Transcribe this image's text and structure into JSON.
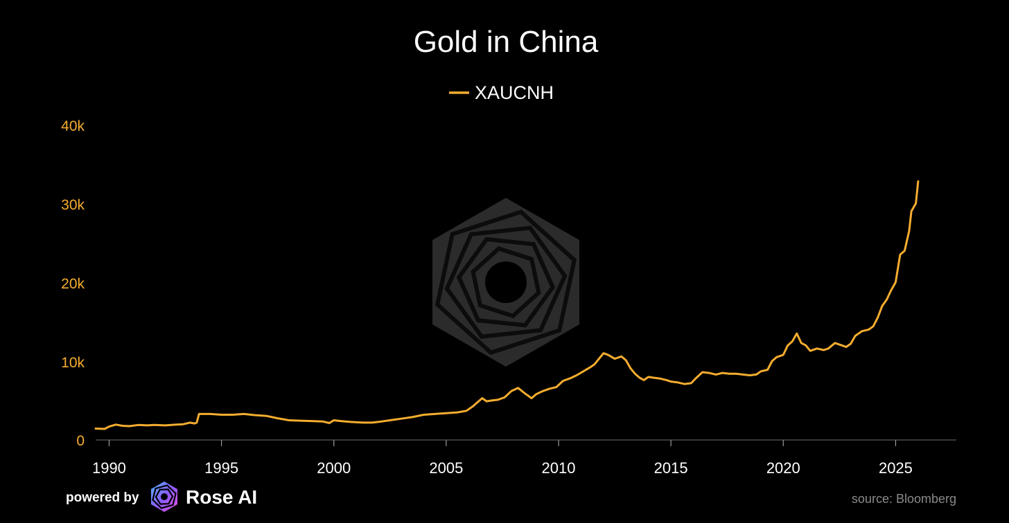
{
  "chart_data": {
    "type": "line",
    "title": "Gold in China",
    "xlabel": "",
    "ylabel": "",
    "xlim": [
      1989.4,
      2027.7
    ],
    "ylim": [
      0,
      40000
    ],
    "x_ticks": [
      1990,
      1995,
      2000,
      2005,
      2010,
      2015,
      2020,
      2025
    ],
    "x_tick_labels": [
      "1990",
      "1995",
      "2000",
      "2005",
      "2010",
      "2015",
      "2020",
      "2025"
    ],
    "y_ticks": [
      0,
      10000,
      20000,
      30000,
      40000
    ],
    "y_tick_labels": [
      "0",
      "10k",
      "20k",
      "30k",
      "40k"
    ],
    "grid": false,
    "legend_position": "top-center",
    "series": [
      {
        "name": "XAUCNH",
        "color": "#f5ad2f",
        "x": [
          1989.4,
          1989.8,
          1990.0,
          1990.3,
          1990.6,
          1990.9,
          1991.3,
          1991.7,
          1992.0,
          1992.5,
          1993.0,
          1993.3,
          1993.6,
          1993.8,
          1993.9,
          1994.0,
          1994.5,
          1995.0,
          1995.5,
          1996.0,
          1996.5,
          1997.0,
          1997.5,
          1998.0,
          1998.5,
          1999.0,
          1999.5,
          1999.8,
          2000.0,
          2000.3,
          2000.7,
          2001.0,
          2001.3,
          2001.7,
          2002.0,
          2002.5,
          2003.0,
          2003.5,
          2004.0,
          2004.5,
          2005.0,
          2005.5,
          2005.9,
          2006.2,
          2006.4,
          2006.6,
          2006.8,
          2007.0,
          2007.3,
          2007.6,
          2007.9,
          2008.2,
          2008.5,
          2008.8,
          2009.0,
          2009.3,
          2009.6,
          2009.9,
          2010.2,
          2010.5,
          2010.8,
          2011.1,
          2011.4,
          2011.6,
          2011.8,
          2012.0,
          2012.2,
          2012.5,
          2012.8,
          2013.0,
          2013.2,
          2013.4,
          2013.6,
          2013.8,
          2014.0,
          2014.2,
          2014.5,
          2014.8,
          2015.0,
          2015.3,
          2015.6,
          2015.9,
          2016.1,
          2016.4,
          2016.7,
          2017.0,
          2017.3,
          2017.6,
          2017.9,
          2018.2,
          2018.5,
          2018.8,
          2019.0,
          2019.3,
          2019.5,
          2019.7,
          2020.0,
          2020.2,
          2020.4,
          2020.6,
          2020.8,
          2021.0,
          2021.2,
          2021.5,
          2021.8,
          2022.0,
          2022.3,
          2022.6,
          2022.8,
          2023.0,
          2023.2,
          2023.5,
          2023.8,
          2024.0,
          2024.2,
          2024.4,
          2024.6,
          2024.8,
          2025.0,
          2025.2,
          2025.4,
          2025.6,
          2025.7,
          2025.9,
          2026.0
        ],
        "y": [
          1450,
          1400,
          1700,
          1950,
          1800,
          1750,
          1900,
          1850,
          1900,
          1850,
          1950,
          2000,
          2200,
          2100,
          2200,
          3300,
          3300,
          3200,
          3200,
          3300,
          3150,
          3050,
          2750,
          2500,
          2450,
          2400,
          2350,
          2150,
          2500,
          2400,
          2300,
          2250,
          2200,
          2200,
          2300,
          2500,
          2700,
          2900,
          3200,
          3300,
          3400,
          3500,
          3700,
          4300,
          4800,
          5300,
          4900,
          5000,
          5100,
          5400,
          6200,
          6600,
          5900,
          5300,
          5800,
          6200,
          6500,
          6700,
          7500,
          7800,
          8200,
          8700,
          9200,
          9600,
          10300,
          11000,
          10800,
          10300,
          10600,
          10100,
          9100,
          8400,
          7900,
          7600,
          8000,
          7900,
          7800,
          7600,
          7400,
          7300,
          7100,
          7200,
          7800,
          8600,
          8500,
          8300,
          8500,
          8400,
          8400,
          8300,
          8200,
          8300,
          8700,
          8900,
          10000,
          10500,
          10800,
          12000,
          12500,
          13500,
          12300,
          12000,
          11300,
          11600,
          11400,
          11600,
          12300,
          12000,
          11800,
          12200,
          13200,
          13800,
          14000,
          14400,
          15500,
          17000,
          17800,
          19000,
          20000,
          23500,
          24000,
          26500,
          29000,
          30000,
          32800
        ]
      }
    ]
  },
  "footer": {
    "powered_by": "powered by",
    "brand_name": "Rose AI",
    "source": "source: Bloomberg"
  },
  "watermark_icon": "rose-ai-hexagon-logo"
}
